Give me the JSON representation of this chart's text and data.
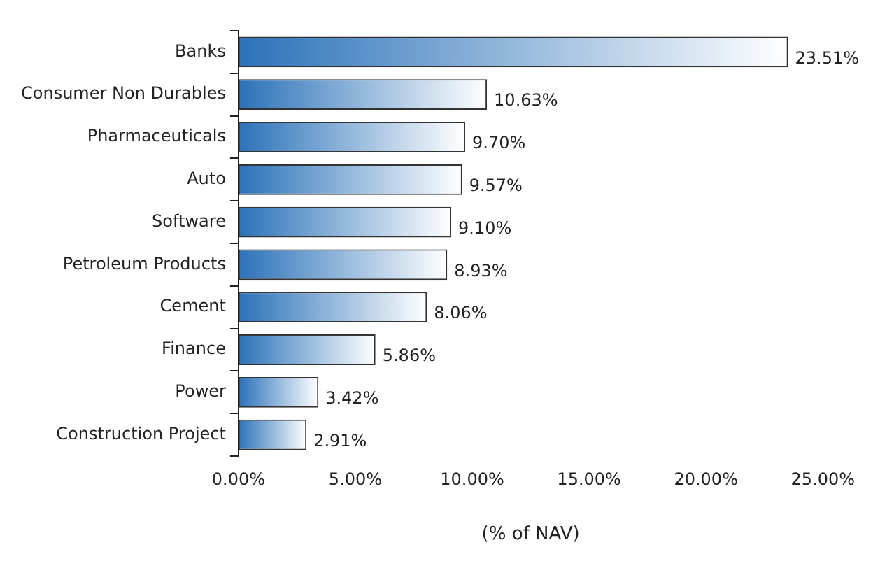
{
  "chart_data": {
    "type": "bar",
    "orientation": "horizontal",
    "xlabel": "(% of NAV)",
    "categories": [
      "Banks",
      "Consumer Non Durables",
      "Pharmaceuticals",
      "Auto",
      "Software",
      "Petroleum Products",
      "Cement",
      "Finance",
      "Power",
      "Construction Project"
    ],
    "values": [
      23.51,
      10.63,
      9.7,
      9.57,
      9.1,
      8.93,
      8.06,
      5.86,
      3.42,
      2.91
    ],
    "value_labels": [
      "23.51%",
      "10.63%",
      "9.70%",
      "9.57%",
      "9.10%",
      "8.93%",
      "8.06%",
      "5.86%",
      "3.42%",
      "2.91%"
    ],
    "color": "#2b72b9",
    "xlim": [
      0,
      25
    ],
    "xticks": [
      {
        "value": 0,
        "label": "0.00%"
      },
      {
        "value": 5,
        "label": "5.00%"
      },
      {
        "value": 10,
        "label": "10.00%"
      },
      {
        "value": 15,
        "label": "15.00%"
      },
      {
        "value": 20,
        "label": "20.00%"
      },
      {
        "value": 25,
        "label": "25.00%"
      }
    ],
    "grid": false,
    "legend": false
  }
}
